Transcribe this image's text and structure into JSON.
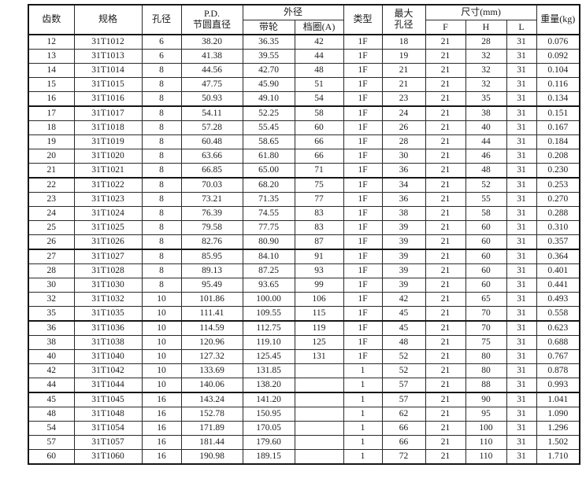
{
  "page": {
    "background_color": "#ffffff",
    "text_color": "#1b1b1b",
    "border_color": "#2a2a2a"
  },
  "table": {
    "header": {
      "teeth": "齿数",
      "spec": "规格",
      "bore": "孔径",
      "pd_line1": "P.D.",
      "pd_line2": "节圆直径",
      "outer_diameter": "外径",
      "pulley": "带轮",
      "flange_a": "档圈(A)",
      "type": "类型",
      "max_bore_line1": "最大",
      "max_bore_line2": "孔径",
      "size_mm": "尺寸(mm)",
      "f": "F",
      "h": "H",
      "l": "L",
      "weight_kg": "重量(kg)"
    },
    "columns": [
      "teeth",
      "spec",
      "bore",
      "pd",
      "pulley",
      "flange_a",
      "type",
      "max_bore",
      "f",
      "h",
      "l",
      "weight_kg"
    ],
    "group_size": 5,
    "rows": [
      [
        "12",
        "31T1012",
        "6",
        "38.20",
        "36.35",
        "42",
        "1F",
        "18",
        "21",
        "28",
        "31",
        "0.076"
      ],
      [
        "13",
        "31T1013",
        "6",
        "41.38",
        "39.55",
        "44",
        "1F",
        "19",
        "21",
        "32",
        "31",
        "0.092"
      ],
      [
        "14",
        "31T1014",
        "8",
        "44.56",
        "42.70",
        "48",
        "1F",
        "21",
        "21",
        "32",
        "31",
        "0.104"
      ],
      [
        "15",
        "31T1015",
        "8",
        "47.75",
        "45.90",
        "51",
        "1F",
        "21",
        "21",
        "32",
        "31",
        "0.116"
      ],
      [
        "16",
        "31T1016",
        "8",
        "50.93",
        "49.10",
        "54",
        "1F",
        "23",
        "21",
        "35",
        "31",
        "0.134"
      ],
      [
        "17",
        "31T1017",
        "8",
        "54.11",
        "52.25",
        "58",
        "1F",
        "24",
        "21",
        "38",
        "31",
        "0.151"
      ],
      [
        "18",
        "31T1018",
        "8",
        "57.28",
        "55.45",
        "60",
        "1F",
        "26",
        "21",
        "40",
        "31",
        "0.167"
      ],
      [
        "19",
        "31T1019",
        "8",
        "60.48",
        "58.65",
        "66",
        "1F",
        "28",
        "21",
        "44",
        "31",
        "0.184"
      ],
      [
        "20",
        "31T1020",
        "8",
        "63.66",
        "61.80",
        "66",
        "1F",
        "30",
        "21",
        "46",
        "31",
        "0.208"
      ],
      [
        "21",
        "31T1021",
        "8",
        "66.85",
        "65.00",
        "71",
        "1F",
        "36",
        "21",
        "48",
        "31",
        "0.230"
      ],
      [
        "22",
        "31T1022",
        "8",
        "70.03",
        "68.20",
        "75",
        "1F",
        "34",
        "21",
        "52",
        "31",
        "0.253"
      ],
      [
        "23",
        "31T1023",
        "8",
        "73.21",
        "71.35",
        "77",
        "1F",
        "36",
        "21",
        "55",
        "31",
        "0.270"
      ],
      [
        "24",
        "31T1024",
        "8",
        "76.39",
        "74.55",
        "83",
        "1F",
        "38",
        "21",
        "58",
        "31",
        "0.288"
      ],
      [
        "25",
        "31T1025",
        "8",
        "79.58",
        "77.75",
        "83",
        "1F",
        "39",
        "21",
        "60",
        "31",
        "0.310"
      ],
      [
        "26",
        "31T1026",
        "8",
        "82.76",
        "80.90",
        "87",
        "1F",
        "39",
        "21",
        "60",
        "31",
        "0.357"
      ],
      [
        "27",
        "31T1027",
        "8",
        "85.95",
        "84.10",
        "91",
        "1F",
        "39",
        "21",
        "60",
        "31",
        "0.364"
      ],
      [
        "28",
        "31T1028",
        "8",
        "89.13",
        "87.25",
        "93",
        "1F",
        "39",
        "21",
        "60",
        "31",
        "0.401"
      ],
      [
        "30",
        "31T1030",
        "8",
        "95.49",
        "93.65",
        "99",
        "1F",
        "39",
        "21",
        "60",
        "31",
        "0.441"
      ],
      [
        "32",
        "31T1032",
        "10",
        "101.86",
        "100.00",
        "106",
        "1F",
        "42",
        "21",
        "65",
        "31",
        "0.493"
      ],
      [
        "35",
        "31T1035",
        "10",
        "111.41",
        "109.55",
        "115",
        "1F",
        "45",
        "21",
        "70",
        "31",
        "0.558"
      ],
      [
        "36",
        "31T1036",
        "10",
        "114.59",
        "112.75",
        "119",
        "1F",
        "45",
        "21",
        "70",
        "31",
        "0.623"
      ],
      [
        "38",
        "31T1038",
        "10",
        "120.96",
        "119.10",
        "125",
        "1F",
        "48",
        "21",
        "75",
        "31",
        "0.688"
      ],
      [
        "40",
        "31T1040",
        "10",
        "127.32",
        "125.45",
        "131",
        "1F",
        "52",
        "21",
        "80",
        "31",
        "0.767"
      ],
      [
        "42",
        "31T1042",
        "10",
        "133.69",
        "131.85",
        "",
        "1",
        "52",
        "21",
        "80",
        "31",
        "0.878"
      ],
      [
        "44",
        "31T1044",
        "10",
        "140.06",
        "138.20",
        "",
        "1",
        "57",
        "21",
        "88",
        "31",
        "0.993"
      ],
      [
        "45",
        "31T1045",
        "16",
        "143.24",
        "141.20",
        "",
        "1",
        "57",
        "21",
        "90",
        "31",
        "1.041"
      ],
      [
        "48",
        "31T1048",
        "16",
        "152.78",
        "150.95",
        "",
        "1",
        "62",
        "21",
        "95",
        "31",
        "1.090"
      ],
      [
        "54",
        "31T1054",
        "16",
        "171.89",
        "170.05",
        "",
        "1",
        "66",
        "21",
        "100",
        "31",
        "1.296"
      ],
      [
        "57",
        "31T1057",
        "16",
        "181.44",
        "179.60",
        "",
        "1",
        "66",
        "21",
        "110",
        "31",
        "1.502"
      ],
      [
        "60",
        "31T1060",
        "16",
        "190.98",
        "189.15",
        "",
        "1",
        "72",
        "21",
        "110",
        "31",
        "1.710"
      ]
    ]
  }
}
